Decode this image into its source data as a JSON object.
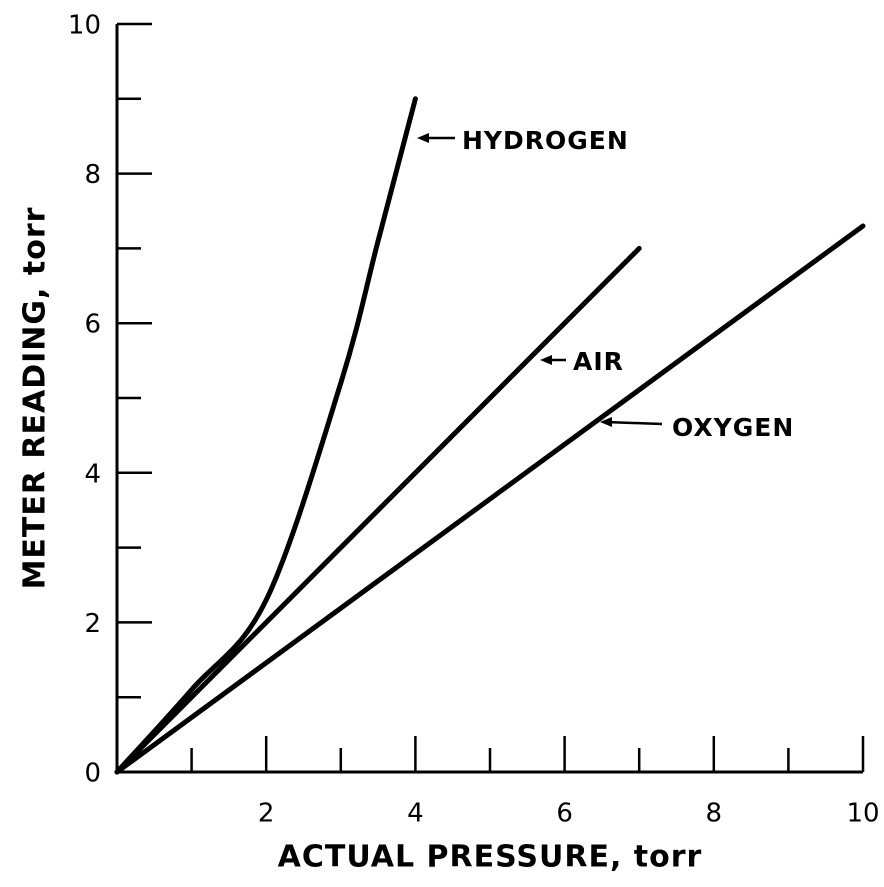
{
  "chart_data": {
    "type": "line",
    "xlabel": "ACTUAL PRESSURE, torr",
    "ylabel": "METER READING, torr",
    "xlim": [
      0,
      10
    ],
    "ylim": [
      0,
      10
    ],
    "xticks": [
      2,
      4,
      6,
      8,
      10
    ],
    "yticks": [
      0,
      2,
      4,
      6,
      8,
      10
    ],
    "xticks_minor": [
      1,
      3,
      5,
      7,
      9
    ],
    "yticks_minor": [
      1,
      3,
      5,
      7,
      9
    ],
    "color": "#000000",
    "series": [
      {
        "name": "HYDROGEN",
        "x": [
          0,
          1,
          2,
          3,
          3.5,
          4
        ],
        "values": [
          0,
          1.1,
          2.3,
          5.2,
          7.1,
          9
        ]
      },
      {
        "name": "AIR",
        "x": [
          0,
          7
        ],
        "values": [
          0,
          7
        ]
      },
      {
        "name": "OXYGEN",
        "x": [
          0,
          10
        ],
        "values": [
          0,
          7.3
        ]
      }
    ]
  }
}
